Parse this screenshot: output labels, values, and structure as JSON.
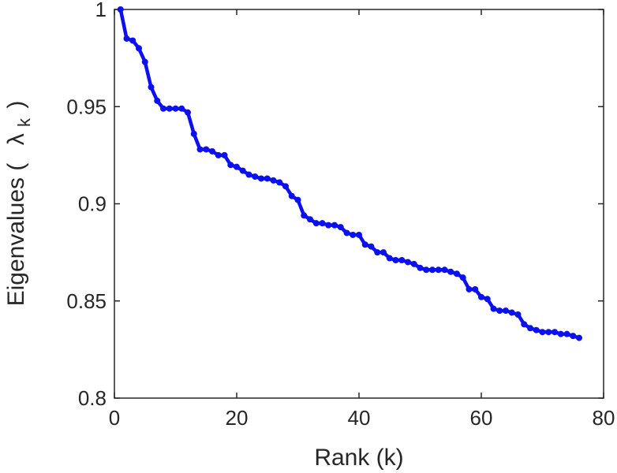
{
  "chart_data": {
    "type": "line",
    "title": "",
    "xlabel": "Rank (k)",
    "ylabel": {
      "prefix": "Eigenvalues (",
      "symbol": "λ",
      "subscript": "k",
      "suffix": ")"
    },
    "xlim": [
      0,
      80
    ],
    "ylim": [
      0.8,
      1.0
    ],
    "xticks": [
      0,
      20,
      40,
      60,
      80
    ],
    "xtick_labels": [
      "0",
      "20",
      "40",
      "60",
      "80"
    ],
    "yticks": [
      0.8,
      0.85,
      0.9,
      0.95,
      1.0
    ],
    "ytick_labels": [
      "0.8",
      "0.85",
      "0.9",
      "0.95",
      "1"
    ],
    "grid": false,
    "colors": {
      "series": "#0a10f0",
      "axis": "#262626"
    },
    "series": [
      {
        "marker": "circle",
        "x": [
          1,
          2,
          3,
          4,
          5,
          6,
          7,
          8,
          9,
          10,
          11,
          12,
          13,
          14,
          15,
          16,
          17,
          18,
          19,
          20,
          21,
          22,
          23,
          24,
          25,
          26,
          27,
          28,
          29,
          30,
          31,
          32,
          33,
          34,
          35,
          36,
          37,
          38,
          39,
          40,
          41,
          42,
          43,
          44,
          45,
          46,
          47,
          48,
          49,
          50,
          51,
          52,
          53,
          54,
          55,
          56,
          57,
          58,
          59,
          60,
          61,
          62,
          63,
          64,
          65,
          66,
          67,
          68,
          69,
          70,
          71,
          72,
          73,
          74,
          75,
          76
        ],
        "y": [
          1.0,
          0.985,
          0.984,
          0.98,
          0.973,
          0.96,
          0.953,
          0.949,
          0.949,
          0.949,
          0.949,
          0.947,
          0.936,
          0.928,
          0.928,
          0.927,
          0.925,
          0.925,
          0.92,
          0.919,
          0.917,
          0.915,
          0.914,
          0.913,
          0.913,
          0.912,
          0.911,
          0.909,
          0.904,
          0.902,
          0.894,
          0.892,
          0.89,
          0.89,
          0.889,
          0.889,
          0.888,
          0.885,
          0.884,
          0.884,
          0.879,
          0.878,
          0.875,
          0.875,
          0.872,
          0.871,
          0.871,
          0.87,
          0.869,
          0.867,
          0.866,
          0.866,
          0.866,
          0.866,
          0.865,
          0.864,
          0.862,
          0.856,
          0.856,
          0.852,
          0.851,
          0.846,
          0.845,
          0.845,
          0.844,
          0.843,
          0.838,
          0.836,
          0.835,
          0.834,
          0.834,
          0.834,
          0.833,
          0.833,
          0.832,
          0.831
        ]
      }
    ]
  }
}
